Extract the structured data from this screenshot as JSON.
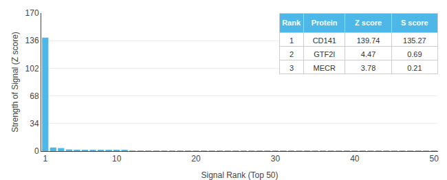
{
  "chart_data": {
    "type": "bar",
    "x": [
      1,
      2,
      3,
      4,
      5,
      6,
      7,
      8,
      9,
      10,
      11,
      12,
      13,
      14,
      15,
      16,
      17,
      18,
      19,
      20,
      21,
      22,
      23,
      24,
      25,
      26,
      27,
      28,
      29,
      30,
      31,
      32,
      33,
      34,
      35,
      36,
      37,
      38,
      39,
      40,
      41,
      42,
      43,
      44,
      45,
      46,
      47,
      48,
      49,
      50
    ],
    "values": [
      139.74,
      4.47,
      3.78,
      2.1,
      1.8,
      1.6,
      1.4,
      1.2,
      1.1,
      1.0,
      0.9,
      0.85,
      0.8,
      0.75,
      0.7,
      0.65,
      0.6,
      0.55,
      0.5,
      0.48,
      0.45,
      0.42,
      0.4,
      0.38,
      0.35,
      0.33,
      0.31,
      0.29,
      0.27,
      0.25,
      0.23,
      0.22,
      0.21,
      0.2,
      0.19,
      0.18,
      0.17,
      0.16,
      0.15,
      0.14,
      0.13,
      0.12,
      0.11,
      0.1,
      0.09,
      0.08,
      0.07,
      0.06,
      0.05,
      0.04
    ],
    "color": "#4db8e8",
    "xlim": [
      0.5,
      50.5
    ],
    "xticks": [
      1,
      10,
      20,
      30,
      40,
      50
    ],
    "ylim": [
      0,
      170
    ],
    "yticks": [
      0,
      34,
      68,
      102,
      136,
      170
    ],
    "xlabel": "Signal Rank (Top 50)",
    "ylabel": "Strength of Signal (Z score)",
    "grid": true,
    "table": {
      "header": [
        "Rank",
        "Protein",
        "Z score",
        "S score"
      ],
      "rows": [
        [
          "1",
          "CD141",
          "139.74",
          "135.27"
        ],
        [
          "2",
          "GTF2I",
          "4.47",
          "0.69"
        ],
        [
          "3",
          "MECR",
          "3.78",
          "0.21"
        ]
      ]
    }
  }
}
